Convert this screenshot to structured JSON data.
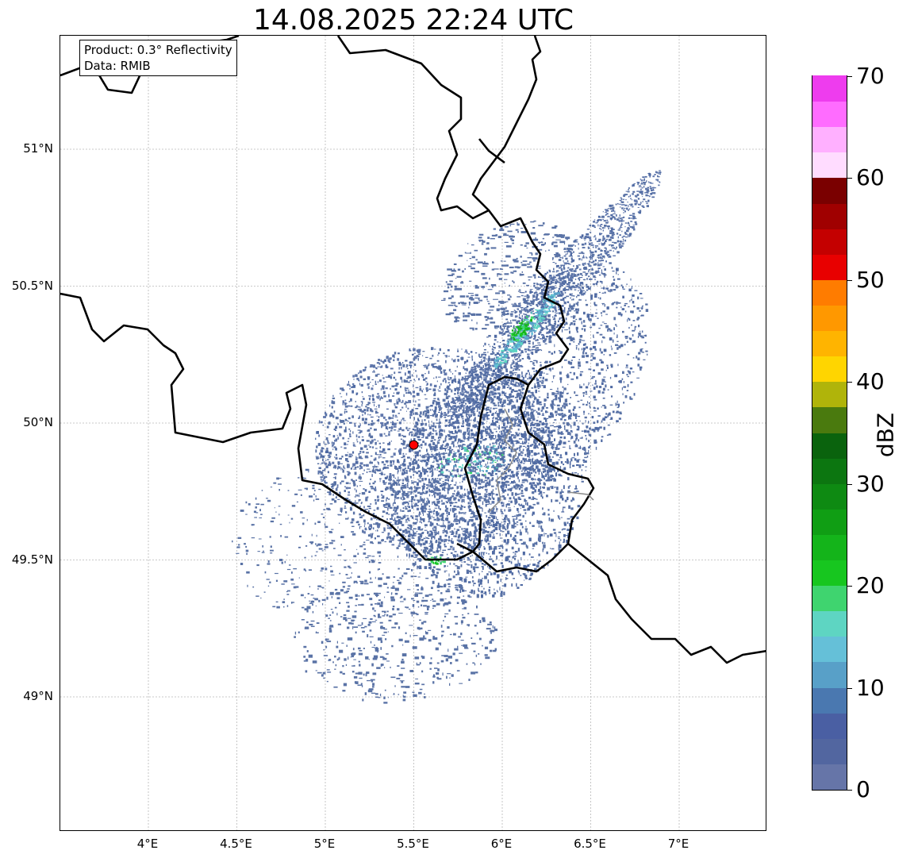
{
  "title": "14.08.2025 22:24 UTC",
  "info_box": {
    "product": "Product: 0.3° Reflectivity",
    "data": "Data: RMIB"
  },
  "map": {
    "lon_labels": [
      "4°E",
      "4.5°E",
      "5°E",
      "5.5°E",
      "6°E",
      "6.5°E",
      "7°E"
    ],
    "lat_labels": [
      "51°N",
      "50.5°N",
      "50°N",
      "49.5°N",
      "49°N"
    ],
    "radar_site": {
      "lon": 5.5,
      "lat": 49.92,
      "color": "#ff0000"
    },
    "grid_style": "dashed light grey",
    "border_color": "#000000",
    "echo_main_color": "#5a73a6"
  },
  "colorbar": {
    "label": "dBZ",
    "tick_labels": [
      "0",
      "10",
      "20",
      "30",
      "40",
      "50",
      "60",
      "70"
    ],
    "range": [
      0,
      70
    ],
    "step": 2.5,
    "colors": [
      "#6675a8",
      "#5266a0",
      "#4a5fa3",
      "#4a78b0",
      "#58a0c8",
      "#65c0d8",
      "#5ed5c2",
      "#3fd46f",
      "#17c61f",
      "#14b41a",
      "#109e14",
      "#0e8a12",
      "#0c7610",
      "#0a630d",
      "#4a7a0e",
      "#b0b40a",
      "#ffd500",
      "#ffb400",
      "#ff9800",
      "#ff7c00",
      "#e80000",
      "#c40000",
      "#a00000",
      "#7a0000",
      "#ffdcff",
      "#ffb0ff",
      "#ff6cff",
      "#ee3cee"
    ]
  }
}
